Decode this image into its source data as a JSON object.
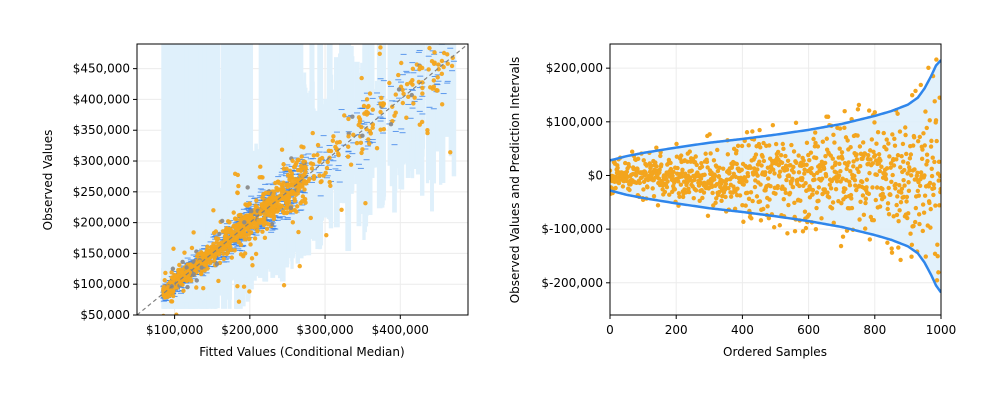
{
  "colors": {
    "interval_fill": "#dff0fb",
    "interval_line": "#2f86eb",
    "observed": "#f3a51e",
    "observed_edge": "#e08e0b",
    "median_tick": "#2f7be8",
    "identity_line": "#808080",
    "grid": "#ececec"
  },
  "chart_data": [
    {
      "id": "left",
      "type": "scatter",
      "title": "",
      "xlabel": "Fitted Values (Conditional Median)",
      "ylabel": "Observed Values",
      "xlim": [
        50000,
        490000
      ],
      "ylim": [
        50000,
        490000
      ],
      "xticks": [
        100000,
        200000,
        300000,
        400000
      ],
      "xtick_labels": [
        "$100,000",
        "$200,000",
        "$300,000",
        "$400,000"
      ],
      "yticks": [
        50000,
        100000,
        150000,
        200000,
        250000,
        300000,
        350000,
        400000,
        450000
      ],
      "ytick_labels": [
        "$50,000",
        "$100,000",
        "$150,000",
        "$200,000",
        "$250,000",
        "$300,000",
        "$350,000",
        "$400,000",
        "$450,000"
      ],
      "grid": true,
      "identity_line": true,
      "n_samples": 1000,
      "fitted_range": [
        80000,
        475000
      ],
      "median_interval_halfwidth_approx": 35000,
      "wide_interval_upper": 490000
    },
    {
      "id": "right",
      "type": "scatter",
      "title": "",
      "xlabel": "Ordered Samples",
      "ylabel": "Observed Values and Prediction Intervals",
      "xlim": [
        0,
        1000
      ],
      "ylim": [
        -260000,
        245000
      ],
      "xticks": [
        0,
        200,
        400,
        600,
        800,
        1000
      ],
      "xtick_labels": [
        "0",
        "200",
        "400",
        "600",
        "800",
        "1000"
      ],
      "yticks": [
        -200000,
        -100000,
        0,
        100000,
        200000
      ],
      "ytick_labels": [
        "$-200,000",
        "$-100,000",
        "$0",
        "$100,000",
        "$200,000"
      ],
      "grid": true,
      "interval_upper": [
        [
          0,
          28000
        ],
        [
          50,
          36000
        ],
        [
          100,
          42000
        ],
        [
          200,
          52000
        ],
        [
          300,
          61000
        ],
        [
          400,
          68000
        ],
        [
          500,
          76000
        ],
        [
          600,
          85000
        ],
        [
          700,
          96000
        ],
        [
          800,
          111000
        ],
        [
          850,
          120000
        ],
        [
          900,
          132000
        ],
        [
          930,
          145000
        ],
        [
          950,
          162000
        ],
        [
          970,
          185000
        ],
        [
          985,
          205000
        ],
        [
          1000,
          215000
        ]
      ],
      "interval_lower": [
        [
          0,
          -28000
        ],
        [
          50,
          -36000
        ],
        [
          100,
          -42000
        ],
        [
          200,
          -52000
        ],
        [
          300,
          -61000
        ],
        [
          400,
          -68000
        ],
        [
          500,
          -76000
        ],
        [
          600,
          -85000
        ],
        [
          700,
          -96000
        ],
        [
          800,
          -111000
        ],
        [
          850,
          -120000
        ],
        [
          900,
          -132000
        ],
        [
          930,
          -145000
        ],
        [
          950,
          -162000
        ],
        [
          970,
          -185000
        ],
        [
          985,
          -205000
        ],
        [
          1000,
          -218000
        ]
      ],
      "n_samples": 1000
    }
  ]
}
